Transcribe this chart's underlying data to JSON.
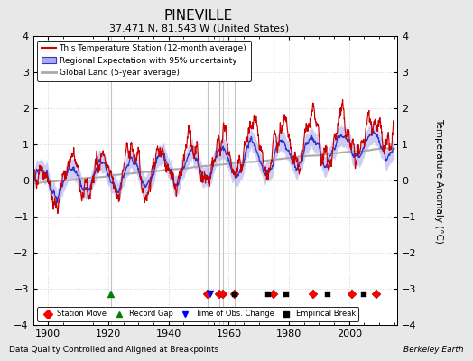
{
  "title": "PINEVILLE",
  "subtitle": "37.471 N, 81.543 W (United States)",
  "xlabel_note": "Data Quality Controlled and Aligned at Breakpoints",
  "credit": "Berkeley Earth",
  "ylabel": "Temperature Anomaly (°C)",
  "year_start": 1895,
  "year_end": 2014,
  "ylim": [
    -4,
    4
  ],
  "yticks": [
    -4,
    -3,
    -2,
    -1,
    0,
    1,
    2,
    3,
    4
  ],
  "xticks": [
    1900,
    1920,
    1940,
    1960,
    1980,
    2000
  ],
  "bg_color": "#e8e8e8",
  "plot_bg_color": "#ffffff",
  "station_move_years": [
    1953,
    1957,
    1958,
    1962,
    1975,
    1988,
    2001,
    2009
  ],
  "record_gap_years": [
    1921
  ],
  "obs_change_years": [
    1954
  ],
  "empirical_break_years": [
    1973,
    1979,
    1962,
    1993,
    2005
  ],
  "breakpoint_vline_years": [
    1921,
    1953,
    1957,
    1958,
    1962,
    1975
  ],
  "red_line_color": "#cc0000",
  "blue_line_color": "#3333cc",
  "blue_fill_color": "#aaaaee",
  "gray_line_color": "#aaaaaa",
  "marker_y": -3.15,
  "seed": 42
}
